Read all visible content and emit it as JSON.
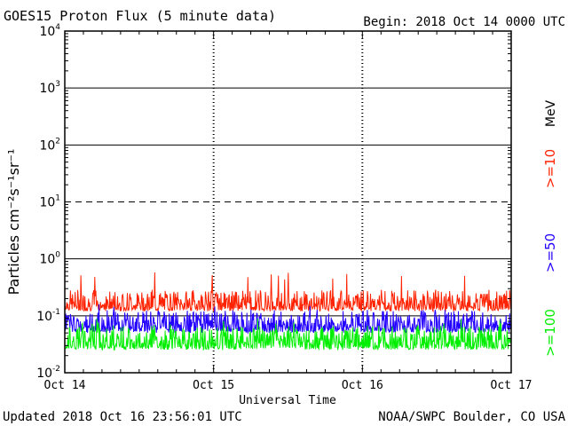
{
  "header": {
    "title": "GOES15 Proton Flux (5 minute data)",
    "begin": "Begin: 2018 Oct 14 0000 UTC"
  },
  "footer": {
    "updated": "Updated 2018 Oct 16 23:56:01 UTC",
    "credit": "NOAA/SWPC Boulder, CO USA"
  },
  "chart_data": {
    "type": "line",
    "title": "GOES15 Proton Flux (5 minute data)",
    "xlabel": "Universal Time",
    "ylabel": "Particles cm⁻²s⁻¹sr⁻¹",
    "y_scale": "log",
    "ylim": [
      0.01,
      10000
    ],
    "xlim": [
      "2018-10-14",
      "2018-10-17"
    ],
    "x_ticks": [
      "Oct 14",
      "Oct 15",
      "Oct 16",
      "Oct 17"
    ],
    "y_ticks": [
      {
        "base": "10",
        "exp": "-2"
      },
      {
        "base": "10",
        "exp": "-1"
      },
      {
        "base": "10",
        "exp": "0"
      },
      {
        "base": "10",
        "exp": "1"
      },
      {
        "base": "10",
        "exp": "2"
      },
      {
        "base": "10",
        "exp": "3"
      },
      {
        "base": "10",
        "exp": "4"
      }
    ],
    "threshold_line": 10,
    "grid": true,
    "legend_unit": "MeV",
    "series": [
      {
        "name": ">=10",
        "color": "#ff2200",
        "typical_min": 0.12,
        "typical_max": 0.3,
        "peak": 0.6
      },
      {
        "name": ">=50",
        "color": "#2200ff",
        "typical_min": 0.05,
        "typical_max": 0.13,
        "peak": 0.16
      },
      {
        "name": ">=100",
        "color": "#00ee00",
        "typical_min": 0.025,
        "typical_max": 0.07,
        "peak": 0.09
      }
    ]
  }
}
